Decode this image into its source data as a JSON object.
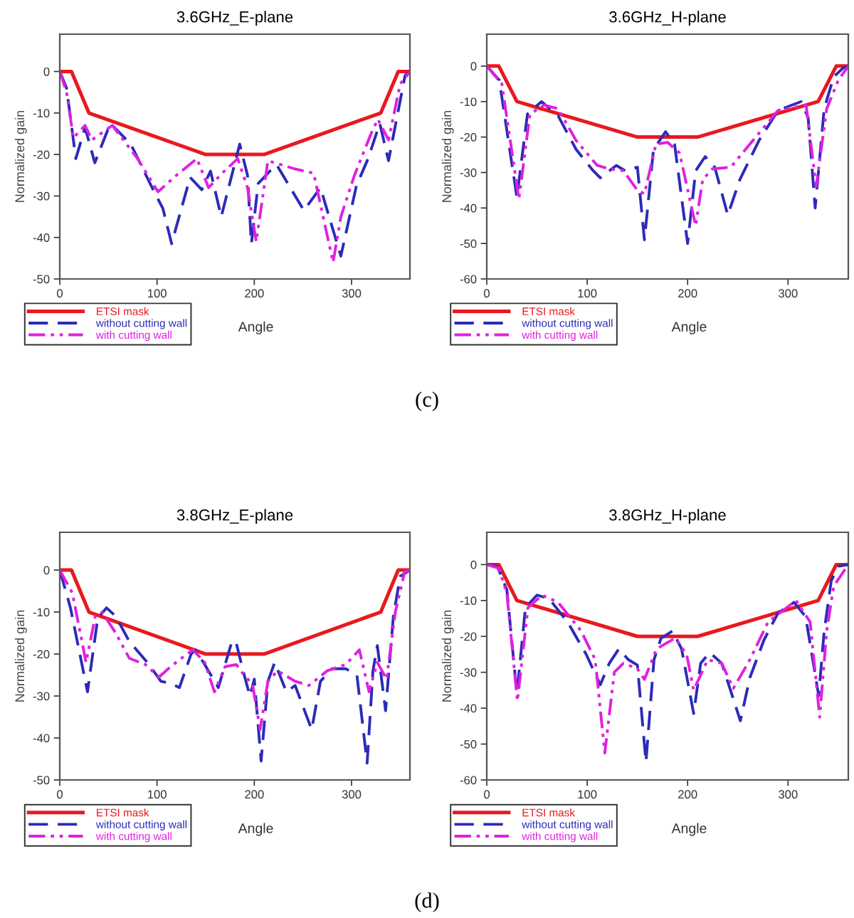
{
  "chart_data": [
    {
      "type": "line",
      "title": "3.6GHz_E-plane",
      "xlabel": "Angle",
      "ylabel": "Normalized gain",
      "xlim": [
        0,
        360
      ],
      "xticks": [
        0,
        100,
        200,
        300
      ],
      "ylim": [
        -50,
        9
      ],
      "yticks": [
        -50,
        -40,
        -30,
        -20,
        -10,
        0
      ],
      "legend": "bottom left",
      "annotations": [
        "(c)"
      ],
      "series": [
        {
          "name": "ETSI mask",
          "color": "#e8191f",
          "line_style": "solid",
          "x": [
            0,
            12,
            30,
            150,
            210,
            330,
            348,
            360
          ],
          "values": [
            0,
            0,
            -10,
            -20,
            -20,
            -10,
            0,
            0
          ]
        },
        {
          "name": "without cutting wall",
          "color": "#2b2bb8",
          "line_style": "dashed",
          "x": [
            0,
            7,
            16.5,
            26,
            36,
            52,
            73,
            96,
            106,
            115,
            134,
            146,
            155,
            166,
            185,
            193,
            197,
            204,
            216,
            223,
            251,
            268,
            289,
            305,
            317,
            329,
            338,
            355,
            360
          ],
          "values": [
            0,
            -4,
            -21,
            -13.5,
            -22,
            -12.5,
            -17.5,
            -28.5,
            -33,
            -41.5,
            -25.5,
            -28.5,
            -24,
            -35,
            -17.5,
            -25,
            -41.5,
            -27,
            -24,
            -22.5,
            -33.5,
            -28,
            -44.5,
            -27.5,
            -21,
            -12.5,
            -21.5,
            -1,
            0
          ]
        },
        {
          "name": "with cutting wall",
          "color": "#e020e0",
          "line_style": "dashdot",
          "x": [
            0,
            7,
            14,
            26,
            33,
            54,
            80,
            101,
            120,
            141,
            153,
            167,
            183,
            193,
            202,
            214,
            242,
            261,
            281,
            289,
            303,
            320,
            327,
            338,
            350,
            360
          ],
          "values": [
            0,
            -5,
            -16,
            -13,
            -16.5,
            -13,
            -21,
            -29,
            -25,
            -21,
            -28,
            -24.5,
            -21,
            -28,
            -41,
            -21.5,
            -23.5,
            -24.5,
            -46,
            -35,
            -25,
            -15,
            -11.5,
            -16.5,
            -3,
            0
          ]
        }
      ]
    },
    {
      "type": "line",
      "title": "3.6GHz_H-plane",
      "xlabel": "Angle",
      "ylabel": "Normalized gain",
      "xlim": [
        0,
        360
      ],
      "xticks": [
        0,
        100,
        200,
        300
      ],
      "ylim": [
        -60,
        9
      ],
      "yticks": [
        -60,
        -50,
        -40,
        -30,
        -20,
        -10,
        0
      ],
      "legend": "bottom left",
      "series": [
        {
          "name": "ETSI mask",
          "color": "#e8191f",
          "line_style": "solid",
          "x": [
            0,
            12,
            30,
            150,
            210,
            330,
            348,
            360
          ],
          "values": [
            0,
            0,
            -10,
            -20,
            -20,
            -10,
            0,
            0
          ]
        },
        {
          "name": "without cutting wall",
          "color": "#2b2bb8",
          "line_style": "dashed",
          "x": [
            0,
            12.5,
            30,
            40.5,
            54.5,
            71,
            89,
            106,
            113,
            129,
            138,
            150,
            157,
            166,
            178,
            187,
            200,
            208,
            217.5,
            227,
            240,
            252,
            271,
            290,
            313,
            320,
            327,
            336,
            345.5,
            355,
            360
          ],
          "values": [
            0,
            -4,
            -37,
            -13.5,
            -10,
            -14,
            -23.5,
            -29.5,
            -31.5,
            -28,
            -29.5,
            -28.5,
            -49,
            -23.5,
            -18.5,
            -22,
            -50,
            -29.5,
            -25.5,
            -28.5,
            -42,
            -32,
            -21,
            -12.5,
            -10,
            -14.5,
            -40,
            -12,
            -3,
            -0.5,
            0
          ]
        },
        {
          "name": "with cutting wall",
          "color": "#e020e0",
          "line_style": "dashdot",
          "x": [
            0,
            15,
            32,
            43,
            57,
            71,
            89,
            110,
            122,
            136,
            150,
            157,
            168.5,
            180,
            192,
            208,
            215,
            224.5,
            243,
            262,
            290,
            318,
            328,
            338.5,
            350,
            360
          ],
          "values": [
            0,
            -5,
            -37.5,
            -13.5,
            -11,
            -12,
            -21,
            -28,
            -29,
            -29.5,
            -35,
            -36,
            -22,
            -21.5,
            -24.5,
            -45,
            -32,
            -29,
            -28.5,
            -22,
            -12.5,
            -11,
            -34,
            -12,
            -4,
            0
          ]
        }
      ]
    },
    {
      "type": "line",
      "title": "3.8GHz_E-plane",
      "xlabel": "Angle",
      "ylabel": "Normalized gain",
      "xlim": [
        0,
        360
      ],
      "xticks": [
        0,
        100,
        200,
        300
      ],
      "ylim": [
        -50,
        9
      ],
      "yticks": [
        -50,
        -40,
        -30,
        -20,
        -10,
        0
      ],
      "legend": "bottom left",
      "annotations": [
        "(d)"
      ],
      "series": [
        {
          "name": "ETSI mask",
          "color": "#e8191f",
          "line_style": "solid",
          "x": [
            0,
            12,
            30,
            150,
            210,
            330,
            348,
            360
          ],
          "values": [
            0,
            0,
            -10,
            -20,
            -20,
            -10,
            0,
            0
          ]
        },
        {
          "name": "without cutting wall",
          "color": "#2b2bb8",
          "line_style": "dashed",
          "x": [
            0,
            11,
            28.5,
            39,
            48,
            57.5,
            71.5,
            90,
            104,
            114,
            123,
            135,
            139.5,
            149,
            163,
            177,
            181,
            188.5,
            195.5,
            200,
            207,
            214,
            221,
            233,
            242,
            259,
            268,
            280,
            294,
            305.5,
            316,
            322,
            326.5,
            335,
            343,
            350,
            360
          ],
          "values": [
            0,
            -9,
            -29,
            -11.5,
            -9,
            -11,
            -17,
            -22,
            -26.5,
            -27,
            -28,
            -20,
            -19,
            -22.5,
            -28,
            -17,
            -17,
            -24,
            -30,
            -26,
            -45.5,
            -26.5,
            -22,
            -29,
            -27.5,
            -38,
            -26.5,
            -23.5,
            -23.5,
            -25,
            -46,
            -24,
            -18,
            -33.5,
            -11,
            -1.5,
            0
          ]
        },
        {
          "name": "with cutting wall",
          "color": "#e020e0",
          "line_style": "dashdot",
          "x": [
            0,
            13,
            27,
            36.5,
            43.5,
            57.5,
            71.5,
            88,
            102,
            114,
            128,
            137,
            149,
            159,
            170,
            181.5,
            191,
            198,
            206,
            214,
            224,
            242,
            256,
            275,
            294,
            308,
            318,
            326.5,
            336,
            345,
            354.5,
            360
          ],
          "values": [
            0,
            -5.5,
            -22,
            -11,
            -10,
            -15,
            -21,
            -22.5,
            -25.5,
            -23,
            -20.5,
            -19,
            -22,
            -29,
            -23,
            -22.5,
            -25.5,
            -27,
            -38,
            -26.5,
            -24,
            -26.5,
            -27.5,
            -24,
            -22.5,
            -19,
            -29,
            -22,
            -26,
            -10,
            -0.5,
            0
          ]
        }
      ]
    },
    {
      "type": "line",
      "title": "3.8GHz_H-plane",
      "xlabel": "Angle",
      "ylabel": "Normalized gain",
      "xlim": [
        0,
        360
      ],
      "xticks": [
        0,
        100,
        200,
        300
      ],
      "ylim": [
        -60,
        9
      ],
      "yticks": [
        -60,
        -50,
        -40,
        -30,
        -20,
        -10,
        0
      ],
      "legend": "bottom left",
      "series": [
        {
          "name": "ETSI mask",
          "color": "#e8191f",
          "line_style": "solid",
          "x": [
            0,
            12,
            30,
            150,
            210,
            330,
            348,
            360
          ],
          "values": [
            0,
            0,
            -10,
            -20,
            -20,
            -10,
            0,
            0
          ]
        },
        {
          "name": "without cutting wall",
          "color": "#2b2bb8",
          "line_style": "dashed",
          "x": [
            0,
            10.5,
            20,
            30,
            38.5,
            50,
            62,
            80.5,
            99,
            113,
            122,
            131.5,
            141,
            150,
            158.5,
            166.5,
            173.5,
            185,
            194,
            206,
            213,
            222,
            234,
            252.5,
            262,
            276,
            290,
            306,
            317.5,
            330.5,
            336,
            343,
            350,
            360
          ],
          "values": [
            0,
            -0.5,
            -7,
            -36,
            -12,
            -8.5,
            -9.5,
            -16,
            -25,
            -33.5,
            -27.5,
            -23.5,
            -26.5,
            -28,
            -55,
            -26.5,
            -20.5,
            -18.5,
            -23.5,
            -41.5,
            -27.5,
            -24.5,
            -27.5,
            -43.5,
            -31.5,
            -21,
            -13.5,
            -10.5,
            -14.5,
            -36.5,
            -18.5,
            -4.5,
            -0.5,
            0
          ]
        },
        {
          "name": "with cutting wall",
          "color": "#e020e0",
          "line_style": "dashdot",
          "x": [
            0,
            12,
            20,
            30.5,
            41,
            55,
            71,
            94,
            108,
            117.5,
            127,
            136,
            150,
            157,
            169,
            187.5,
            199,
            206,
            220,
            234,
            245.5,
            262,
            280,
            308,
            322,
            331.5,
            338.5,
            345.5,
            360
          ],
          "values": [
            0,
            -1,
            -8,
            -38,
            -12,
            -8.5,
            -10.5,
            -18.5,
            -26.5,
            -52.5,
            -30,
            -27.5,
            -29,
            -32,
            -23.5,
            -20.5,
            -25,
            -35,
            -26.5,
            -27.5,
            -34.5,
            -26.5,
            -16,
            -10,
            -16,
            -42.5,
            -18.5,
            -6,
            0
          ]
        }
      ]
    }
  ]
}
